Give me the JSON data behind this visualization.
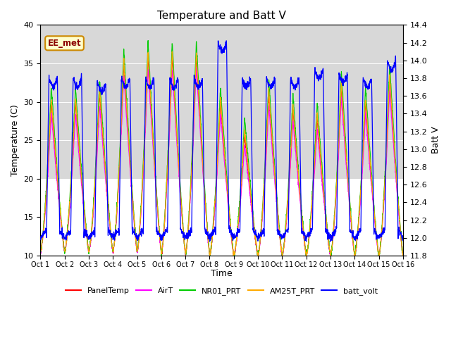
{
  "title": "Temperature and Batt V",
  "xlabel": "Time",
  "ylabel_left": "Temperature (C)",
  "ylabel_right": "Batt V",
  "ylim_left": [
    10,
    40
  ],
  "ylim_right": [
    11.8,
    14.4
  ],
  "xlim": [
    0,
    15
  ],
  "xtick_labels": [
    "Oct 1",
    "Oct 2",
    "Oct 3",
    "Oct 4",
    "Oct 5",
    "Oct 6",
    "Oct 7",
    "Oct 8",
    "Oct 9",
    "Oct 10",
    "Oct 11",
    "Oct 12",
    "Oct 13",
    "Oct 14",
    "Oct 15",
    "Oct 16"
  ],
  "annotation_text": "EE_met",
  "series_colors": {
    "PanelTemp": "#ff0000",
    "AirT": "#ff00ff",
    "NR01_PRT": "#00cc00",
    "AM25T_PRT": "#ffaa00",
    "batt_volt": "#0000ff"
  },
  "legend_labels": [
    "PanelTemp",
    "AirT",
    "NR01_PRT",
    "AM25T_PRT",
    "batt_volt"
  ],
  "bg_band_ymin": 20,
  "bg_band_ymax": 40,
  "bg_color": "#d8d8d8",
  "title_fontsize": 11
}
